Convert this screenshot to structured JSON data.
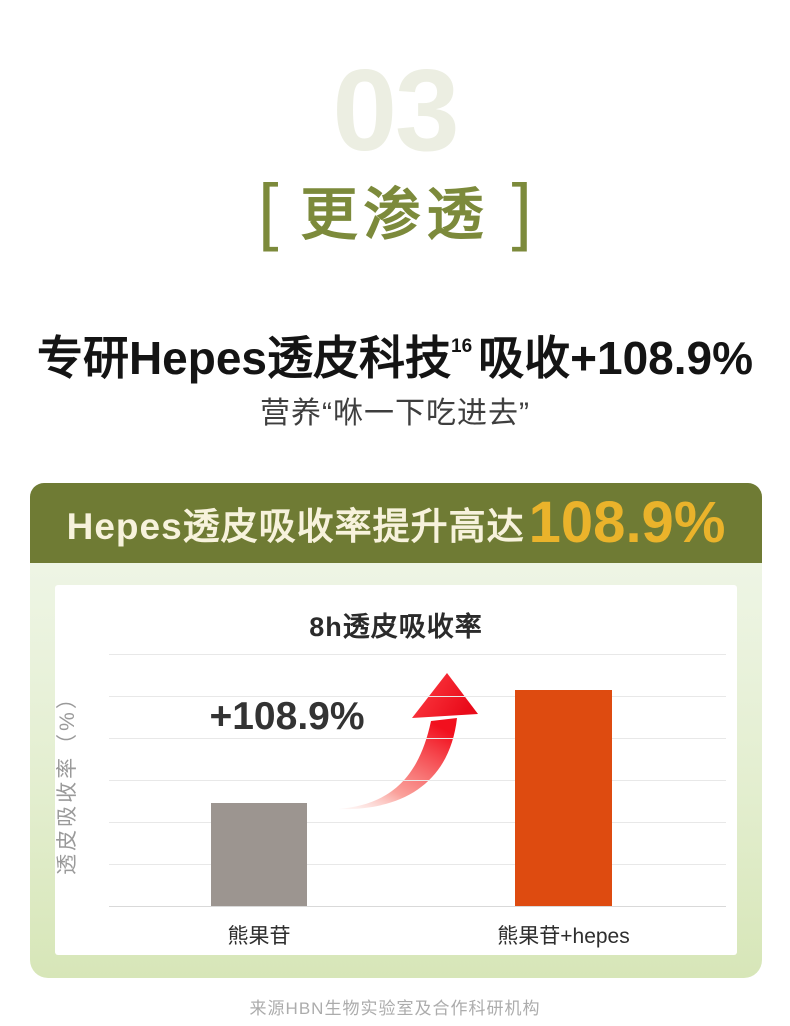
{
  "page": {
    "section_number": "03",
    "bracket_left": "[",
    "bracket_right": "]",
    "section_label": "更渗透",
    "headline_part1": "专研Hepes透皮科技",
    "headline_sup": "16",
    "headline_part2": "吸收+108.9%",
    "subtitle": "营养“咻一下吃进去”",
    "footer": "来源HBN生物实验室及合作科研机构"
  },
  "banner": {
    "text": "Hepes透皮吸收率提升高达",
    "highlight": "108.9%"
  },
  "chart_data": {
    "type": "bar",
    "title": "8h透皮吸收率",
    "ylabel": "透皮吸收率（%）",
    "xlabel": "",
    "categories": [
      "熊果苷",
      "熊果苷+hepes"
    ],
    "values": [
      1.0,
      2.089
    ],
    "value_note": "relative 8h transdermal absorption, right bar is +108.9% vs left; no numeric axis ticks shown",
    "annotation": "+108.9%",
    "bar_colors": [
      "#9C9590",
      "#DE4B10"
    ],
    "grid": true,
    "gridline_count": 6,
    "legend": false
  },
  "colors": {
    "watermark_number": "#ECEEE2",
    "accent_olive": "#7C8A3B",
    "banner_bg": "#6F7B34",
    "banner_text": "#F7F2DC",
    "banner_highlight": "#EAB32B",
    "panel_top": "#EEF5E5",
    "panel_bottom": "#D7E6B8",
    "bar_gray": "#9C9590",
    "bar_orange": "#DE4B10",
    "arrow_red": "#F2101E",
    "headline_text": "#141414",
    "footer_text": "#ACACAC"
  }
}
